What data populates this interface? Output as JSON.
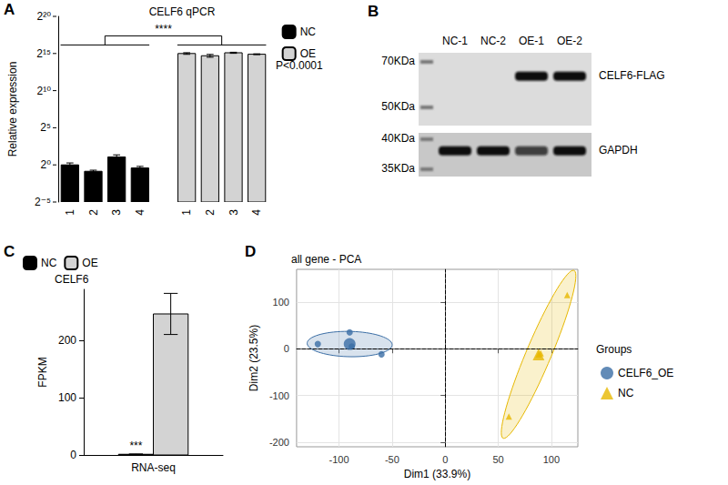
{
  "chart_data": [
    {
      "panel_label": "A",
      "type": "bar",
      "title": "CELF6 qPCR",
      "y_label": "Relative expression",
      "categories": [
        "1",
        "2",
        "3",
        "4",
        null,
        "1",
        "2",
        "3",
        "4"
      ],
      "series": [
        {
          "name": "NC",
          "color": "#000000",
          "values": [
            1.0,
            0.55,
            2.1,
            0.75,
            null,
            null,
            null,
            null,
            null
          ],
          "errors": [
            0.2,
            0.06,
            0.45,
            0.12,
            null,
            null,
            null,
            null,
            null
          ]
        },
        {
          "name": "OE",
          "color": "#d3d3d3",
          "values": [
            null,
            null,
            null,
            null,
            null,
            32768,
            26600,
            35100,
            30600
          ],
          "errors": [
            null,
            null,
            null,
            null,
            null,
            2500,
            3500,
            1800,
            1200
          ]
        }
      ],
      "log": "y",
      "ylim": [
        0.03125,
        1048576
      ],
      "yticks": [
        {
          "value": 0.03125,
          "label": "2⁻⁵"
        },
        {
          "value": 1,
          "label": "2⁰"
        },
        {
          "value": 32,
          "label": "2⁵"
        },
        {
          "value": 1024,
          "label": "2¹⁰"
        },
        {
          "value": 32768,
          "label": "2¹⁵"
        },
        {
          "value": 1048576,
          "label": "2²⁰"
        }
      ],
      "significance": "****",
      "annotation": "P<0.0001",
      "legend": "right",
      "grid": false
    },
    {
      "panel_label": "B",
      "type": "blot",
      "lanes": [
        "NC-1",
        "NC-2",
        "OE-1",
        "OE-2"
      ],
      "blots": [
        {
          "name": "CELF6-FLAG",
          "markers": [
            {
              "value": 70,
              "label": "70KDa"
            },
            {
              "value": 50,
              "label": "50KDa"
            }
          ],
          "band_kda": 63,
          "intensity": [
            0,
            0,
            1,
            1
          ]
        },
        {
          "name": "GAPDH",
          "markers": [
            {
              "value": 40,
              "label": "40KDa"
            },
            {
              "value": 35,
              "label": "35KDa"
            }
          ],
          "band_kda": 38,
          "intensity": [
            1,
            1,
            0.75,
            1
          ]
        }
      ]
    },
    {
      "panel_label": "C",
      "type": "bar",
      "title": "CELF6",
      "y_label": "FPKM",
      "categories": [
        "RNA-seq"
      ],
      "series": [
        {
          "name": "NC",
          "color": "#000000",
          "values": [
            1.2
          ],
          "errors": [
            0.6
          ]
        },
        {
          "name": "OE",
          "color": "#d3d3d3",
          "values": [
            247
          ],
          "errors": [
            36
          ]
        }
      ],
      "ylim": [
        0,
        290
      ],
      "yticks": [
        0,
        100,
        200
      ],
      "significance": "***",
      "legend": "top",
      "grid": false
    },
    {
      "panel_label": "D",
      "type": "scatter",
      "title": "all gene - PCA",
      "x_label": "Dim1 (33.9%)",
      "y_label": "Dim2 (23.5%)",
      "xlim": [
        -140,
        125
      ],
      "xticks": [
        -100,
        -50,
        0,
        50,
        100
      ],
      "ylim": [
        -210,
        170
      ],
      "yticks": [
        -200,
        -100,
        0,
        100
      ],
      "grid": true,
      "legend": "right",
      "legend_title": "Groups",
      "ref_lines": [
        {
          "axis": "x",
          "value": 0
        },
        {
          "axis": "y",
          "value": 0
        }
      ],
      "series": [
        {
          "name": "CELF6_OE",
          "color": "#3b6ea5",
          "marker": "circle",
          "x": [
            -120,
            -90,
            -88,
            -60
          ],
          "y": [
            10,
            35,
            5,
            -12
          ],
          "centroid": [
            -90,
            10
          ],
          "ellipse": {
            "center": [
              -90,
              10
            ],
            "major": [
              40,
              -3
            ],
            "minor": [
              2,
              27
            ]
          }
        },
        {
          "name": "NC",
          "color": "#e7b800",
          "marker": "triangle",
          "x": [
            60,
            88,
            90,
            115
          ],
          "y": [
            -145,
            -12,
            -10,
            115
          ],
          "centroid": [
            88,
            -12
          ],
          "ellipse": {
            "center": [
              88,
              -12
            ],
            "major": [
              33,
              180
            ],
            "minor": [
              12,
              -4
            ]
          }
        }
      ]
    }
  ]
}
